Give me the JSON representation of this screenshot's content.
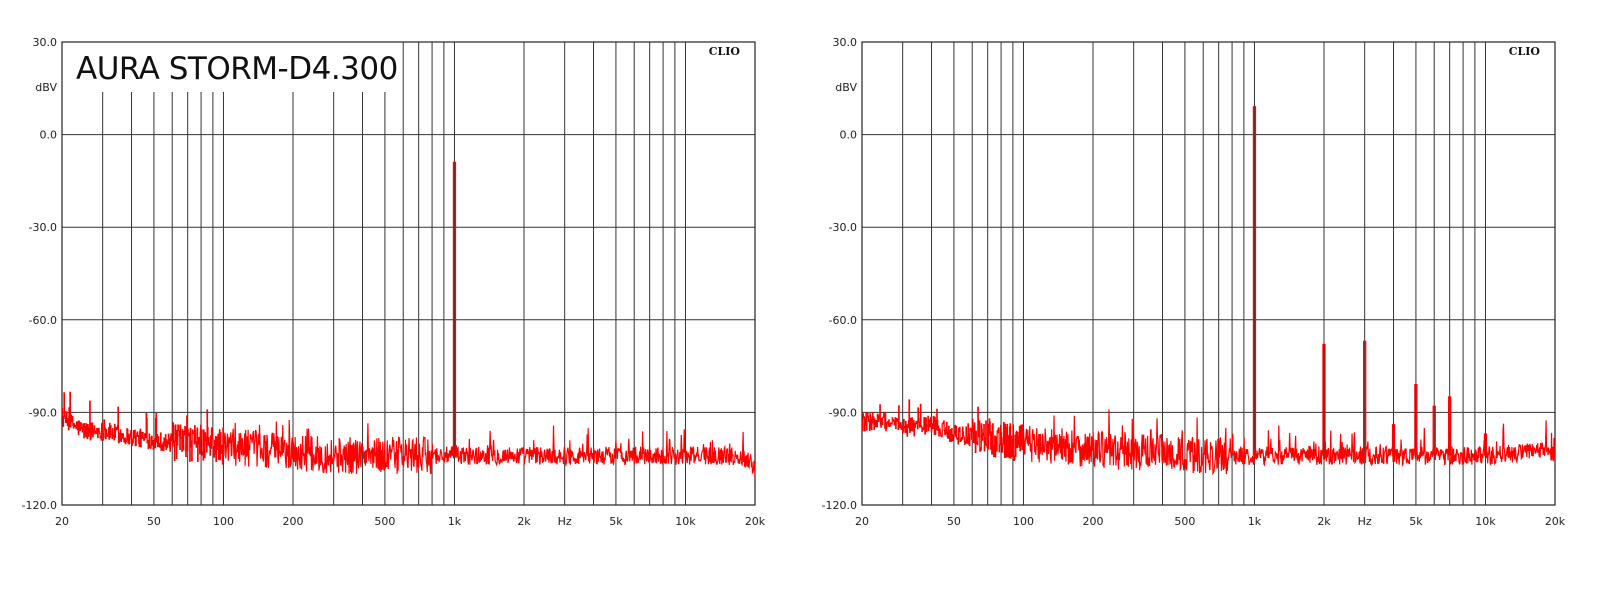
{
  "chart_data": [
    {
      "type": "line",
      "title": "AURA STORM-D4.300",
      "brand": "CLIO",
      "xscale": "log",
      "xlim": [
        20,
        20000
      ],
      "ylim": [
        -120,
        30
      ],
      "ylabel": "dBV",
      "xlabel": "Hz",
      "grid": true,
      "yticks": [
        {
          "value": 30,
          "label": "30.0"
        },
        {
          "value": 0,
          "label": "0.0"
        },
        {
          "value": -30,
          "label": "-30.0"
        },
        {
          "value": -60,
          "label": "-60.0"
        },
        {
          "value": -90,
          "label": "-90.0"
        },
        {
          "value": -120,
          "label": "-120.0"
        }
      ],
      "xticks": [
        {
          "value": 20,
          "label": "20"
        },
        {
          "value": 50,
          "label": "50"
        },
        {
          "value": 100,
          "label": "100"
        },
        {
          "value": 200,
          "label": "200"
        },
        {
          "value": 500,
          "label": "500"
        },
        {
          "value": 1000,
          "label": "1k"
        },
        {
          "value": 2000,
          "label": "2k"
        },
        {
          "value": 5000,
          "label": "5k"
        },
        {
          "value": 10000,
          "label": "10k"
        },
        {
          "value": 20000,
          "label": "20k"
        }
      ],
      "x_unit_label": {
        "value": 3000,
        "label": "Hz"
      },
      "series": [
        {
          "color": "#ff0000",
          "noise_floor": [
            [
              20,
              -92
            ],
            [
              25,
              -96
            ],
            [
              30,
              -96
            ],
            [
              40,
              -98
            ],
            [
              50,
              -99
            ],
            [
              60,
              -100
            ],
            [
              70,
              -100
            ],
            [
              80,
              -100
            ],
            [
              100,
              -101
            ],
            [
              150,
              -102
            ],
            [
              200,
              -103
            ],
            [
              300,
              -104
            ],
            [
              400,
              -104
            ],
            [
              500,
              -104
            ],
            [
              700,
              -104
            ],
            [
              900,
              -104
            ],
            [
              1000,
              -104
            ],
            [
              1500,
              -104
            ],
            [
              2000,
              -104
            ],
            [
              3000,
              -104
            ],
            [
              5000,
              -104
            ],
            [
              10000,
              -104
            ],
            [
              15000,
              -104
            ],
            [
              19000,
              -105
            ],
            [
              20000,
              -109
            ]
          ],
          "peaks": [
            [
              1000,
              -9
            ]
          ]
        }
      ]
    },
    {
      "type": "line",
      "brand": "CLIO",
      "xscale": "log",
      "xlim": [
        20,
        20000
      ],
      "ylim": [
        -120,
        30
      ],
      "ylabel": "dBV",
      "xlabel": "Hz",
      "grid": true,
      "yticks": [
        {
          "value": 30,
          "label": "30.0"
        },
        {
          "value": 0,
          "label": "0.0"
        },
        {
          "value": -30,
          "label": "-30.0"
        },
        {
          "value": -60,
          "label": "-60.0"
        },
        {
          "value": -90,
          "label": "-90.0"
        },
        {
          "value": -120,
          "label": "-120.0"
        }
      ],
      "xticks": [
        {
          "value": 20,
          "label": "20"
        },
        {
          "value": 50,
          "label": "50"
        },
        {
          "value": 100,
          "label": "100"
        },
        {
          "value": 200,
          "label": "200"
        },
        {
          "value": 500,
          "label": "500"
        },
        {
          "value": 1000,
          "label": "1k"
        },
        {
          "value": 2000,
          "label": "2k"
        },
        {
          "value": 5000,
          "label": "5k"
        },
        {
          "value": 10000,
          "label": "10k"
        },
        {
          "value": 20000,
          "label": "20k"
        }
      ],
      "x_unit_label": {
        "value": 3000,
        "label": "Hz"
      },
      "series": [
        {
          "color": "#ff0000",
          "noise_floor": [
            [
              20,
              -93
            ],
            [
              25,
              -93
            ],
            [
              30,
              -95
            ],
            [
              40,
              -94
            ],
            [
              50,
              -97
            ],
            [
              60,
              -98
            ],
            [
              70,
              -98
            ],
            [
              80,
              -99
            ],
            [
              100,
              -100
            ],
            [
              150,
              -101
            ],
            [
              200,
              -102
            ],
            [
              300,
              -103
            ],
            [
              400,
              -103
            ],
            [
              500,
              -104
            ],
            [
              700,
              -104
            ],
            [
              900,
              -104
            ],
            [
              1000,
              -104
            ],
            [
              1500,
              -104
            ],
            [
              2000,
              -104
            ],
            [
              3000,
              -104
            ],
            [
              5000,
              -104
            ],
            [
              10000,
              -104
            ],
            [
              15000,
              -103
            ],
            [
              19000,
              -102
            ],
            [
              20000,
              -106
            ]
          ],
          "peaks": [
            [
              1000,
              9
            ],
            [
              2000,
              -68
            ],
            [
              3000,
              -67
            ],
            [
              4000,
              -94
            ],
            [
              5000,
              -81
            ],
            [
              6000,
              -88
            ],
            [
              7000,
              -85
            ],
            [
              10000,
              -97
            ]
          ]
        }
      ]
    }
  ]
}
